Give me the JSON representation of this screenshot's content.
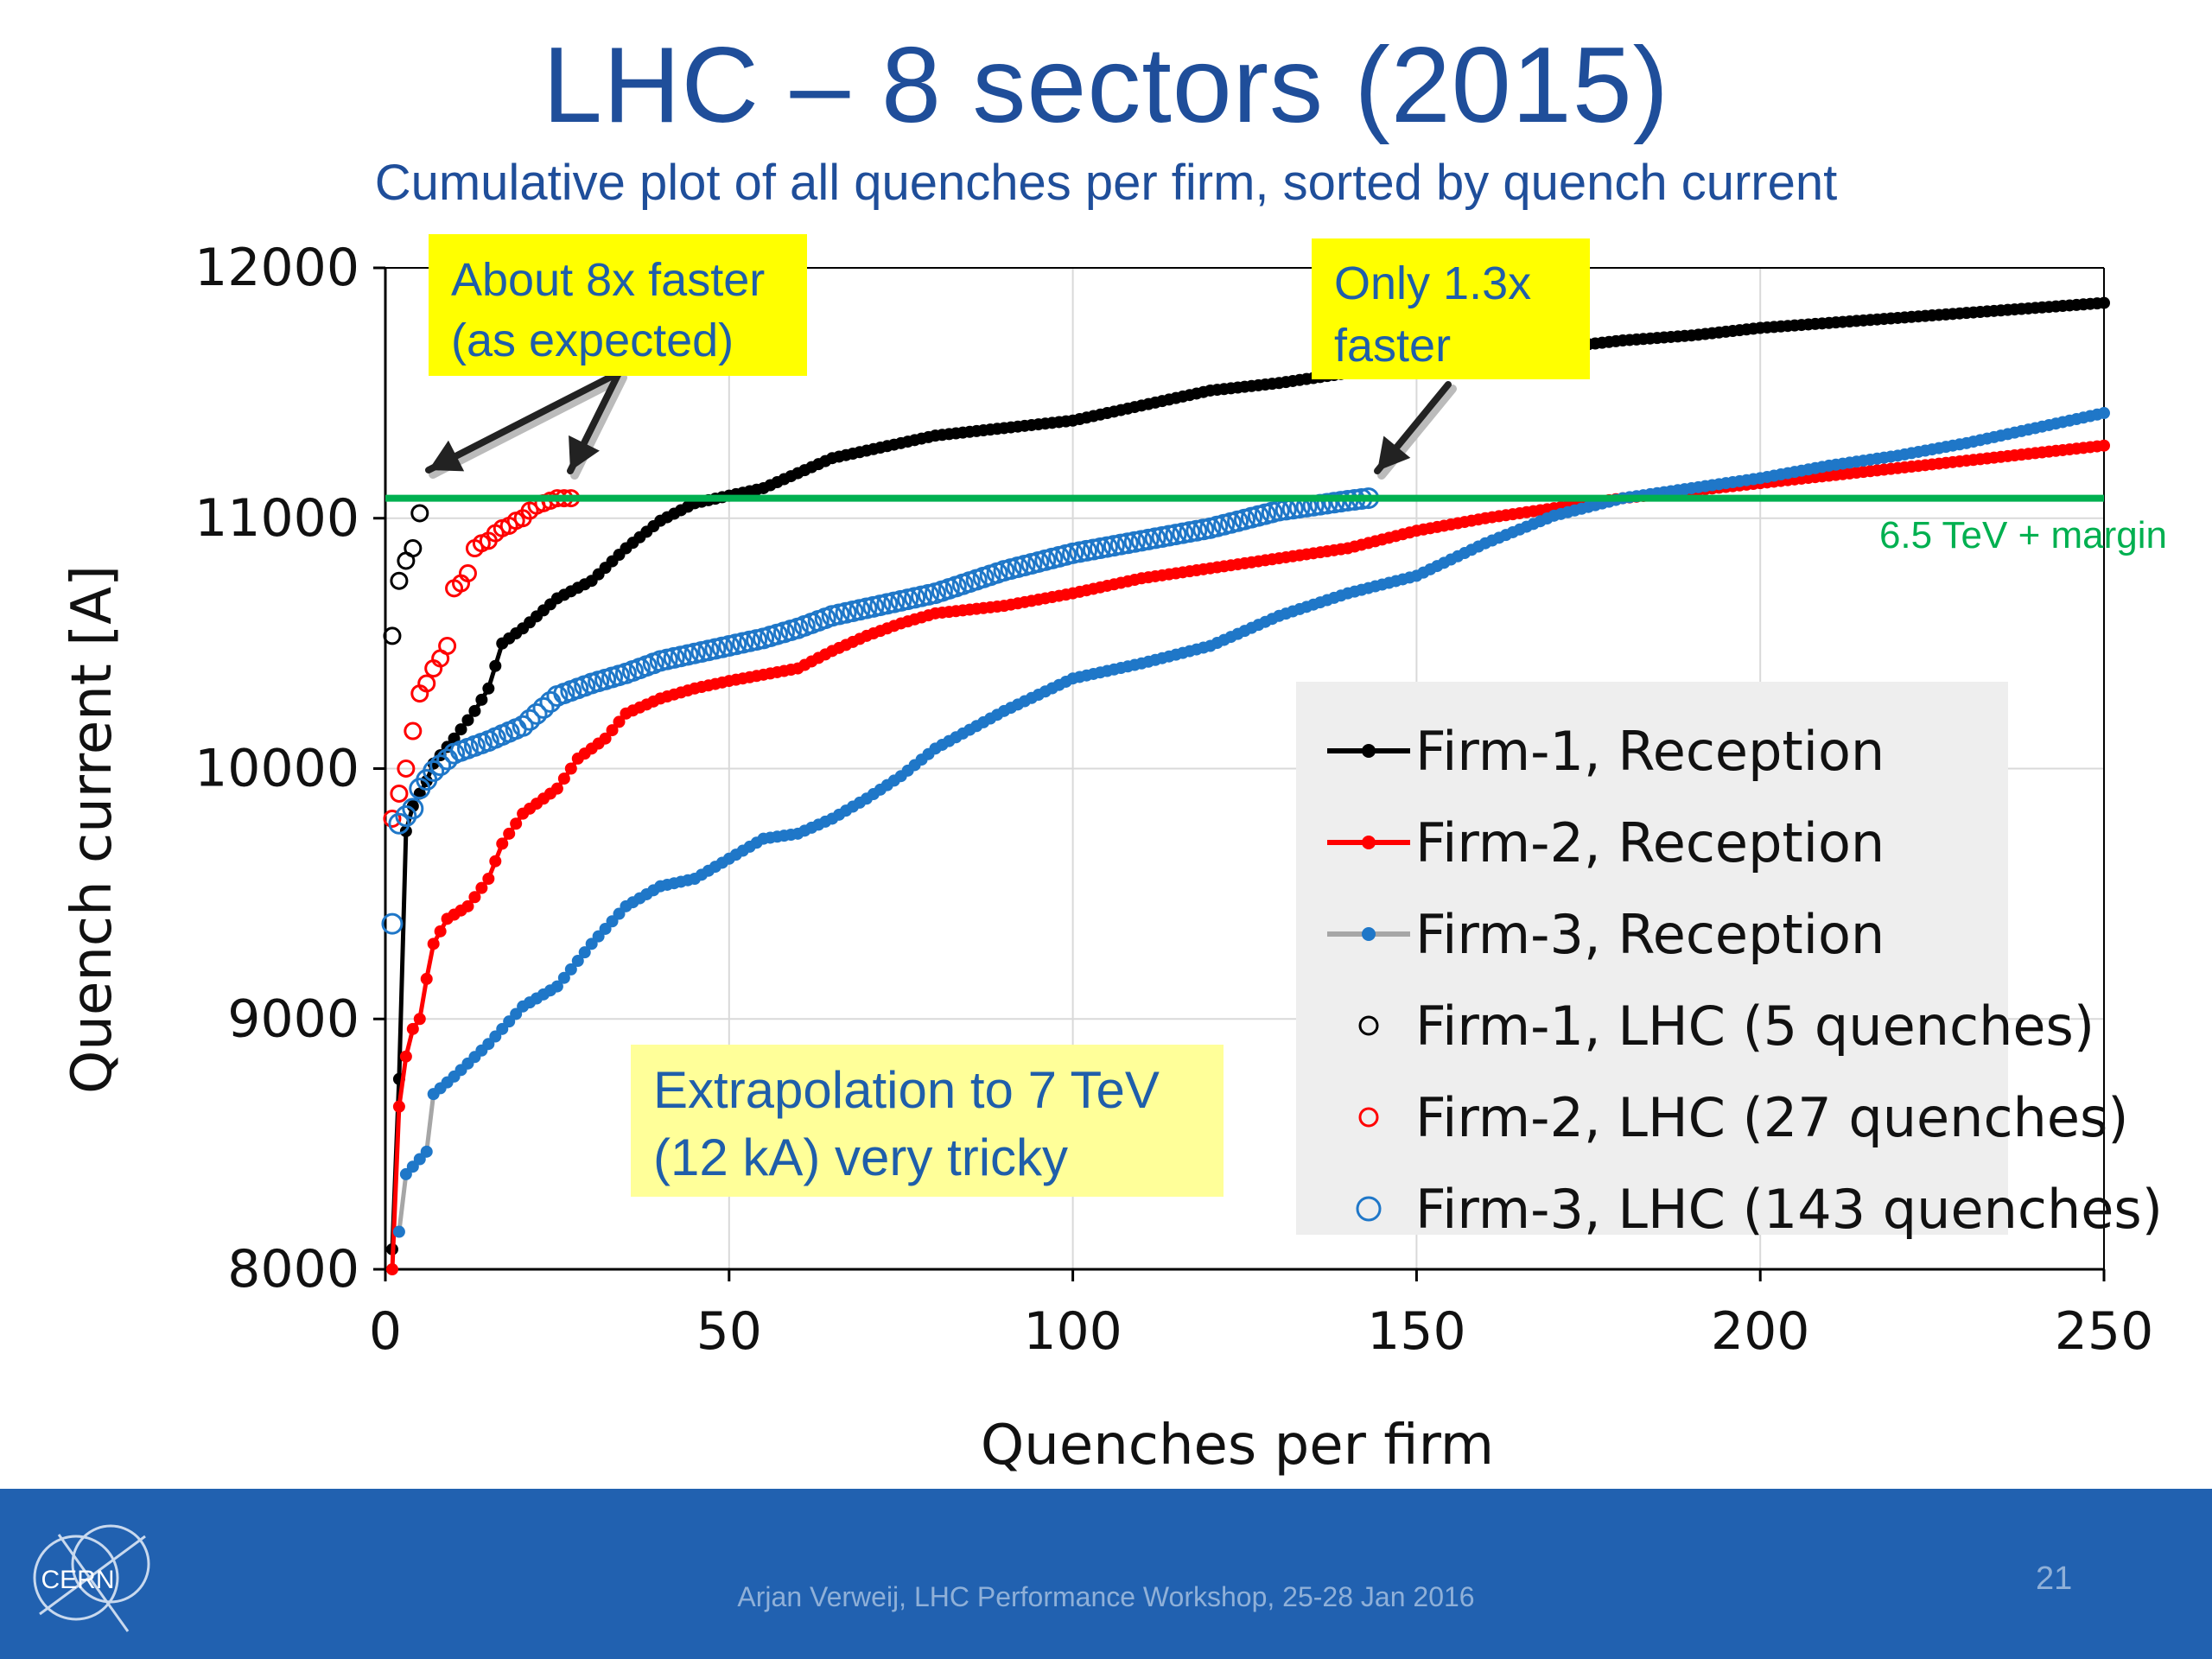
{
  "slide": {
    "title": "LHC – 8 sectors (2015)",
    "subtitle": "Cumulative plot of all quenches per firm, sorted by quench current",
    "footer": "Arjan Verweij, LHC Performance Workshop, 25-28 Jan 2016",
    "page_number": "21",
    "logo_text": "CERN"
  },
  "callouts": {
    "faster_8x": "About 8x faster\n(as expected)",
    "faster_13x": "Only 1.3x\nfaster",
    "extrapolation": "Extrapolation to 7 TeV\n(12 kA) very tricky"
  },
  "legend": {
    "items": [
      {
        "label": "Firm-1, Reception",
        "color": "#000000",
        "kind": "line"
      },
      {
        "label": "Firm-2, Reception",
        "color": "#ff0000",
        "kind": "line"
      },
      {
        "label": "Firm-3, Reception",
        "color": "#1f77c8",
        "kind": "line-grey"
      },
      {
        "label": "Firm-1, LHC (5 quenches)",
        "color": "#000000",
        "kind": "circle"
      },
      {
        "label": "Firm-2, LHC (27 quenches)",
        "color": "#ff0000",
        "kind": "circle"
      },
      {
        "label": "Firm-3, LHC (143 quenches)",
        "color": "#1f77c8",
        "kind": "circle"
      }
    ]
  },
  "colors": {
    "title": "#1f4e9a",
    "callout_yellow": "#ffff00",
    "callout_light_yellow": "#ffff99",
    "margin_line": "#00b050",
    "footer": "#2161b0"
  },
  "chart_data": {
    "type": "line",
    "xlabel": "Quenches per firm",
    "ylabel": "Quench current [A]",
    "xlim": [
      0,
      250
    ],
    "ylim": [
      8000,
      12000
    ],
    "xticks": [
      0,
      50,
      100,
      150,
      200,
      250
    ],
    "yticks": [
      8000,
      9000,
      10000,
      11000,
      12000
    ],
    "grid": true,
    "legend_position": "bottom-right",
    "reference_line": {
      "y": 11080,
      "label": "6.5 TeV + margin"
    },
    "series": [
      {
        "name": "Firm-1, Reception",
        "style": "line-markers",
        "color": "#000000",
        "points": [
          [
            1,
            8080
          ],
          [
            2,
            8760
          ],
          [
            3,
            9750
          ],
          [
            4,
            9850
          ],
          [
            5,
            9900
          ],
          [
            6,
            9950
          ],
          [
            7,
            10020
          ],
          [
            10,
            10120
          ],
          [
            13,
            10230
          ],
          [
            15,
            10320
          ],
          [
            17,
            10500
          ],
          [
            20,
            10560
          ],
          [
            25,
            10680
          ],
          [
            30,
            10750
          ],
          [
            35,
            10880
          ],
          [
            40,
            10990
          ],
          [
            45,
            11060
          ],
          [
            50,
            11090
          ],
          [
            55,
            11120
          ],
          [
            60,
            11180
          ],
          [
            65,
            11240
          ],
          [
            70,
            11270
          ],
          [
            80,
            11330
          ],
          [
            90,
            11360
          ],
          [
            100,
            11390
          ],
          [
            110,
            11450
          ],
          [
            120,
            11510
          ],
          [
            130,
            11540
          ],
          [
            140,
            11580
          ],
          [
            150,
            11610
          ],
          [
            160,
            11640
          ],
          [
            170,
            11680
          ],
          [
            180,
            11710
          ],
          [
            190,
            11730
          ],
          [
            200,
            11760
          ],
          [
            220,
            11800
          ],
          [
            240,
            11840
          ],
          [
            250,
            11860
          ]
        ]
      },
      {
        "name": "Firm-2, Reception",
        "style": "line-markers",
        "color": "#ff0000",
        "points": [
          [
            1,
            8000
          ],
          [
            2,
            8650
          ],
          [
            3,
            8850
          ],
          [
            4,
            8960
          ],
          [
            5,
            9000
          ],
          [
            6,
            9160
          ],
          [
            7,
            9300
          ],
          [
            9,
            9400
          ],
          [
            12,
            9450
          ],
          [
            15,
            9560
          ],
          [
            17,
            9700
          ],
          [
            20,
            9820
          ],
          [
            25,
            9920
          ],
          [
            28,
            10040
          ],
          [
            32,
            10120
          ],
          [
            35,
            10220
          ],
          [
            40,
            10280
          ],
          [
            45,
            10320
          ],
          [
            50,
            10350
          ],
          [
            60,
            10400
          ],
          [
            65,
            10470
          ],
          [
            70,
            10530
          ],
          [
            75,
            10580
          ],
          [
            80,
            10620
          ],
          [
            90,
            10650
          ],
          [
            100,
            10700
          ],
          [
            110,
            10760
          ],
          [
            120,
            10800
          ],
          [
            130,
            10840
          ],
          [
            140,
            10880
          ],
          [
            150,
            10950
          ],
          [
            160,
            11000
          ],
          [
            170,
            11040
          ],
          [
            180,
            11080
          ],
          [
            190,
            11110
          ],
          [
            200,
            11140
          ],
          [
            210,
            11170
          ],
          [
            220,
            11200
          ],
          [
            230,
            11230
          ],
          [
            240,
            11260
          ],
          [
            250,
            11290
          ]
        ]
      },
      {
        "name": "Firm-3, Reception",
        "style": "line-markers-grey",
        "color": "#1f77c8",
        "points": [
          [
            2,
            8150
          ],
          [
            3,
            8380
          ],
          [
            6,
            8470
          ],
          [
            7,
            8700
          ],
          [
            10,
            8770
          ],
          [
            15,
            8900
          ],
          [
            20,
            9050
          ],
          [
            25,
            9130
          ],
          [
            30,
            9300
          ],
          [
            35,
            9450
          ],
          [
            40,
            9530
          ],
          [
            45,
            9560
          ],
          [
            50,
            9640
          ],
          [
            55,
            9720
          ],
          [
            60,
            9740
          ],
          [
            65,
            9800
          ],
          [
            70,
            9880
          ],
          [
            75,
            9970
          ],
          [
            80,
            10080
          ],
          [
            90,
            10230
          ],
          [
            100,
            10360
          ],
          [
            110,
            10420
          ],
          [
            120,
            10490
          ],
          [
            130,
            10610
          ],
          [
            140,
            10700
          ],
          [
            150,
            10770
          ],
          [
            160,
            10900
          ],
          [
            170,
            11010
          ],
          [
            180,
            11080
          ],
          [
            190,
            11120
          ],
          [
            200,
            11160
          ],
          [
            210,
            11210
          ],
          [
            220,
            11250
          ],
          [
            230,
            11300
          ],
          [
            240,
            11360
          ],
          [
            250,
            11420
          ]
        ]
      },
      {
        "name": "Firm-1, LHC (5 quenches)",
        "style": "open-circles",
        "color": "#000000",
        "points": [
          [
            1,
            10530
          ],
          [
            2,
            10750
          ],
          [
            3,
            10830
          ],
          [
            4,
            10880
          ],
          [
            5,
            11020
          ]
        ]
      },
      {
        "name": "Firm-2, LHC (27 quenches)",
        "style": "open-circles",
        "color": "#ff0000",
        "points": [
          [
            1,
            9800
          ],
          [
            2,
            9900
          ],
          [
            3,
            10000
          ],
          [
            4,
            10150
          ],
          [
            5,
            10300
          ],
          [
            6,
            10340
          ],
          [
            7,
            10400
          ],
          [
            8,
            10440
          ],
          [
            9,
            10490
          ],
          [
            10,
            10720
          ],
          [
            11,
            10740
          ],
          [
            12,
            10780
          ],
          [
            13,
            10880
          ],
          [
            14,
            10900
          ],
          [
            15,
            10910
          ],
          [
            16,
            10940
          ],
          [
            17,
            10960
          ],
          [
            18,
            10970
          ],
          [
            19,
            10990
          ],
          [
            20,
            11000
          ],
          [
            21,
            11030
          ],
          [
            22,
            11050
          ],
          [
            23,
            11060
          ],
          [
            24,
            11070
          ],
          [
            25,
            11080
          ],
          [
            26,
            11080
          ],
          [
            27,
            11080
          ]
        ]
      },
      {
        "name": "Firm-3, LHC (143 quenches)",
        "style": "open-circles",
        "color": "#1f77c8",
        "points": [
          [
            1,
            9380
          ],
          [
            2,
            9780
          ],
          [
            4,
            9840
          ],
          [
            5,
            9920
          ],
          [
            7,
            9990
          ],
          [
            10,
            10060
          ],
          [
            15,
            10110
          ],
          [
            20,
            10170
          ],
          [
            25,
            10290
          ],
          [
            30,
            10340
          ],
          [
            35,
            10380
          ],
          [
            40,
            10430
          ],
          [
            45,
            10460
          ],
          [
            50,
            10490
          ],
          [
            55,
            10520
          ],
          [
            60,
            10560
          ],
          [
            65,
            10610
          ],
          [
            70,
            10640
          ],
          [
            80,
            10700
          ],
          [
            90,
            10790
          ],
          [
            100,
            10860
          ],
          [
            110,
            10910
          ],
          [
            120,
            10960
          ],
          [
            130,
            11030
          ],
          [
            135,
            11050
          ],
          [
            140,
            11070
          ],
          [
            143,
            11080
          ]
        ]
      }
    ]
  }
}
